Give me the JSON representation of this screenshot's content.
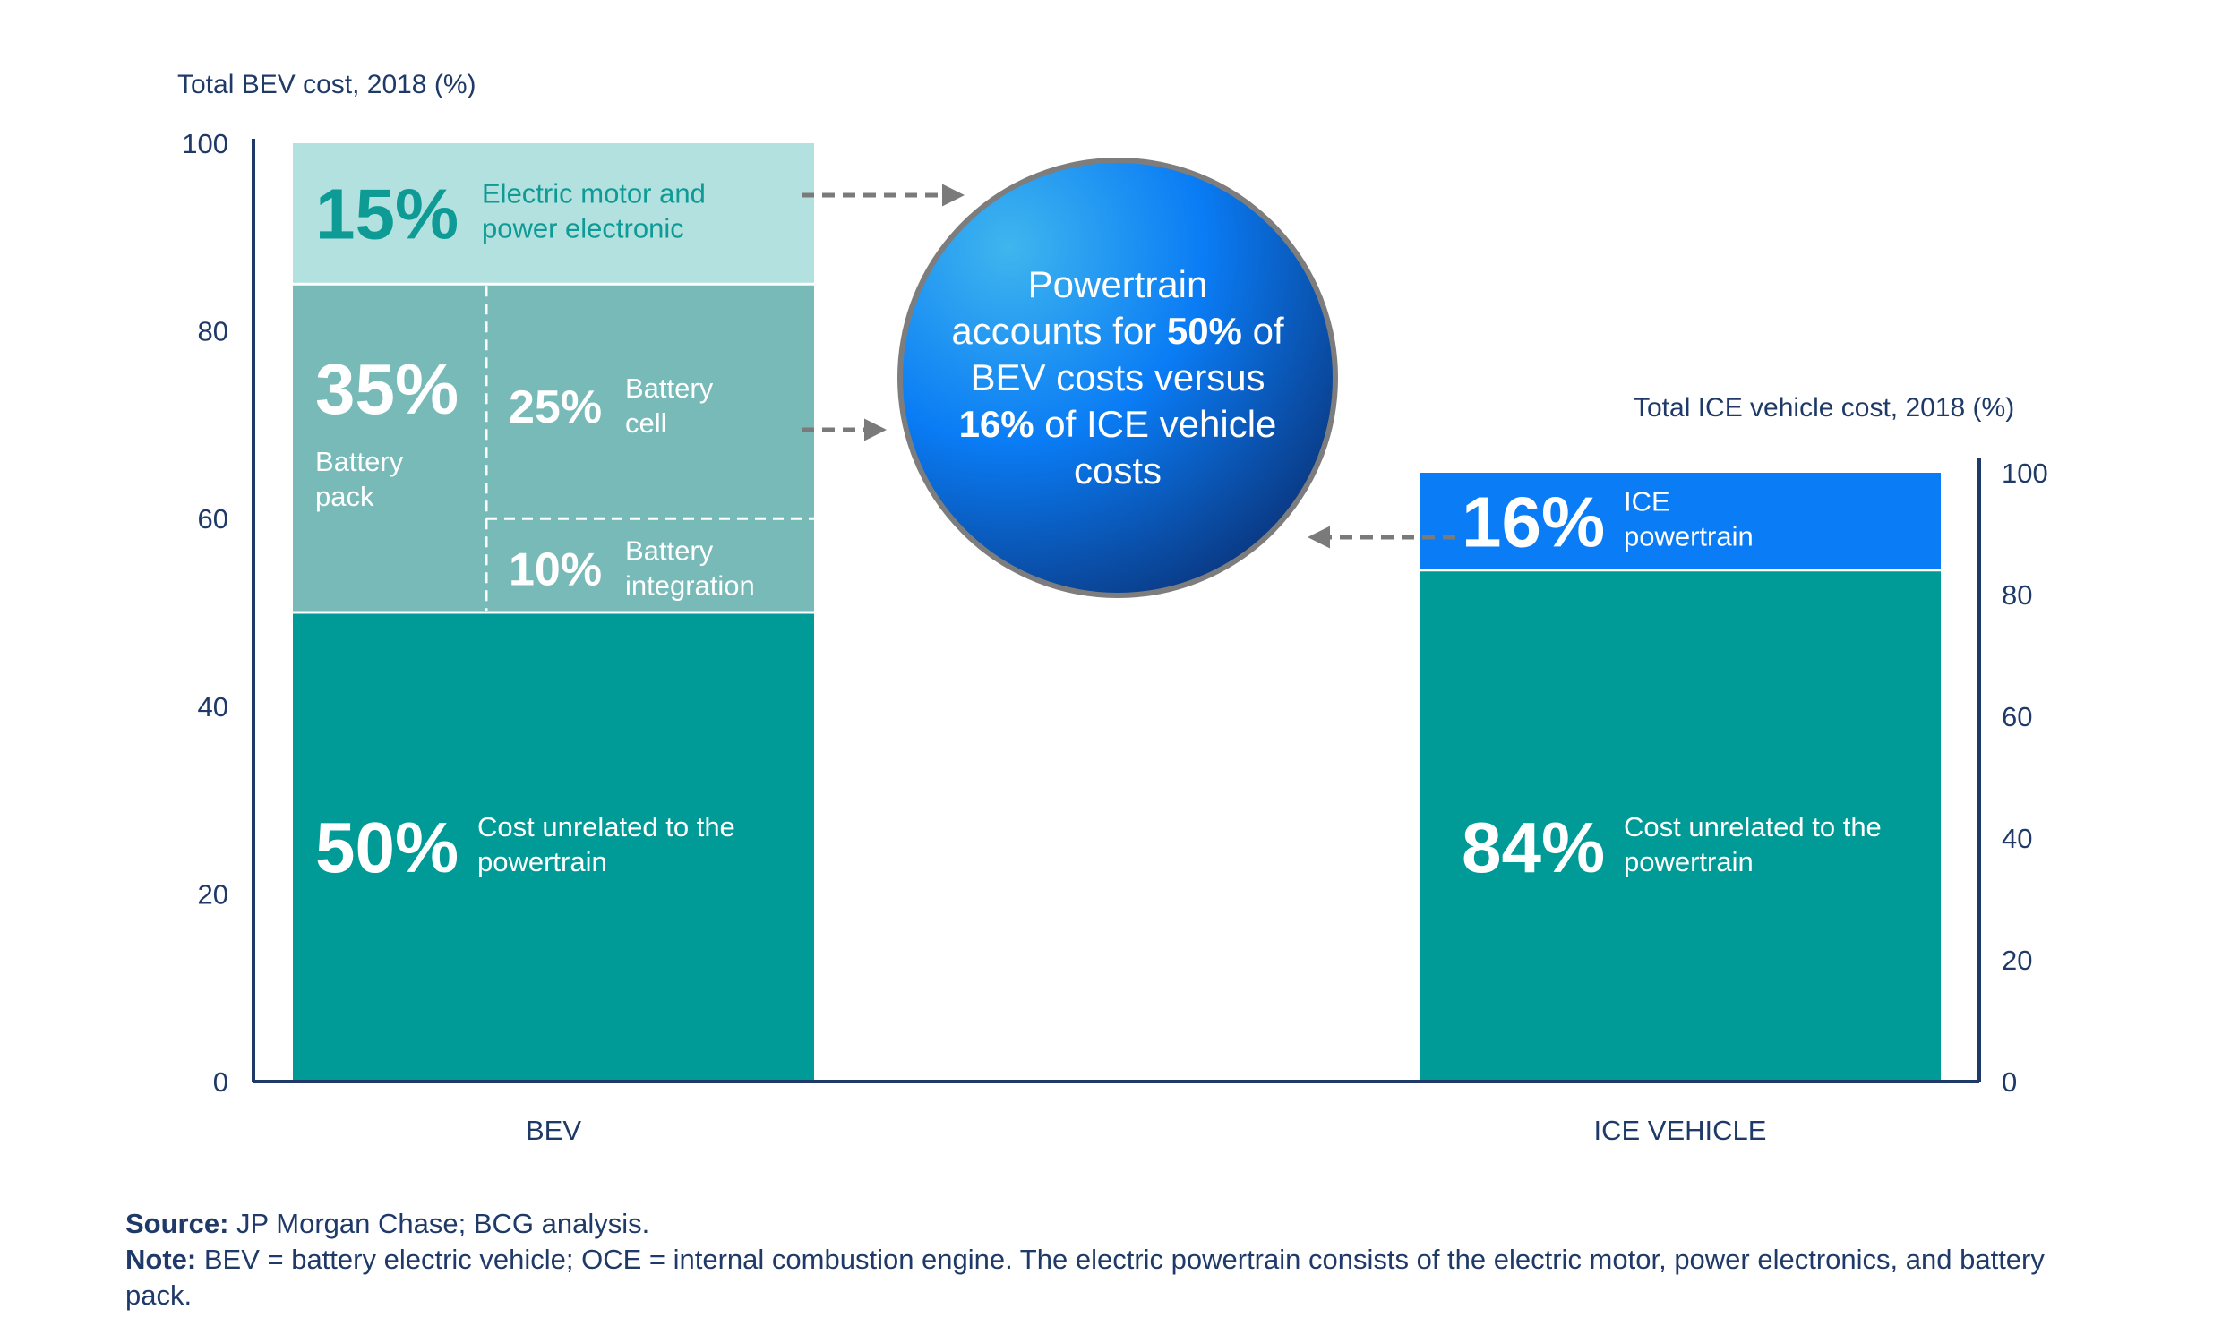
{
  "chart_data": {
    "type": "bar",
    "stacked": true,
    "left_axis": {
      "title": "Total BEV cost, 2018 (%)",
      "ylim": [
        0,
        100
      ],
      "ticks": [
        "0",
        "20",
        "40",
        "60",
        "80",
        "100"
      ]
    },
    "right_axis": {
      "title": "Total ICE vehicle cost, 2018 (%)",
      "ylim": [
        0,
        100
      ],
      "ticks": [
        "0",
        "20",
        "40",
        "60",
        "80",
        "100"
      ]
    },
    "categories": [
      "BEV",
      "ICE VEHICLE"
    ],
    "bars": [
      {
        "category": "BEV",
        "segments": [
          {
            "value": 50,
            "pct": "50%",
            "label": "Cost unrelated to the powertrain",
            "color": "#009a97"
          },
          {
            "value": 35,
            "pct": "35%",
            "label": "Battery pack",
            "color": "#77bab8",
            "sub": [
              {
                "value": 10,
                "pct": "10%",
                "label": "Battery integration"
              },
              {
                "value": 25,
                "pct": "25%",
                "label": "Battery cell"
              }
            ]
          },
          {
            "value": 15,
            "pct": "15%",
            "label": "Electric motor and power electronic",
            "color": "#b2e1df"
          }
        ]
      },
      {
        "category": "ICE VEHICLE",
        "segments": [
          {
            "value": 84,
            "pct": "84%",
            "label": "Cost unrelated to the powertrain",
            "color": "#009a97"
          },
          {
            "value": 16,
            "pct": "16%",
            "label": "ICE powertrain",
            "color": "#0a7cf5"
          }
        ]
      }
    ],
    "callout": {
      "parts": [
        {
          "text": "Powertrain",
          "bold": false,
          "br": true
        },
        {
          "text": "accounts for ",
          "bold": false
        },
        {
          "text": "50%",
          "bold": true
        },
        {
          "text": " of",
          "bold": false,
          "br": true
        },
        {
          "text": "BEV costs versus",
          "bold": false,
          "br": true
        },
        {
          "text": "16%",
          "bold": true
        },
        {
          "text": " of ICE vehicle",
          "bold": false,
          "br": true
        },
        {
          "text": "costs",
          "bold": false
        }
      ]
    },
    "colors": {
      "axis": "#1f3a68",
      "arrow": "#7a7a7a"
    }
  },
  "footer": {
    "source_label": "Source:",
    "source_text": "JP Morgan Chase; BCG analysis.",
    "note_label": "Note:",
    "note_text": "BEV = battery electric vehicle; OCE = internal combustion engine. The electric powertrain consists of the electric motor, power electronics, and battery pack."
  }
}
